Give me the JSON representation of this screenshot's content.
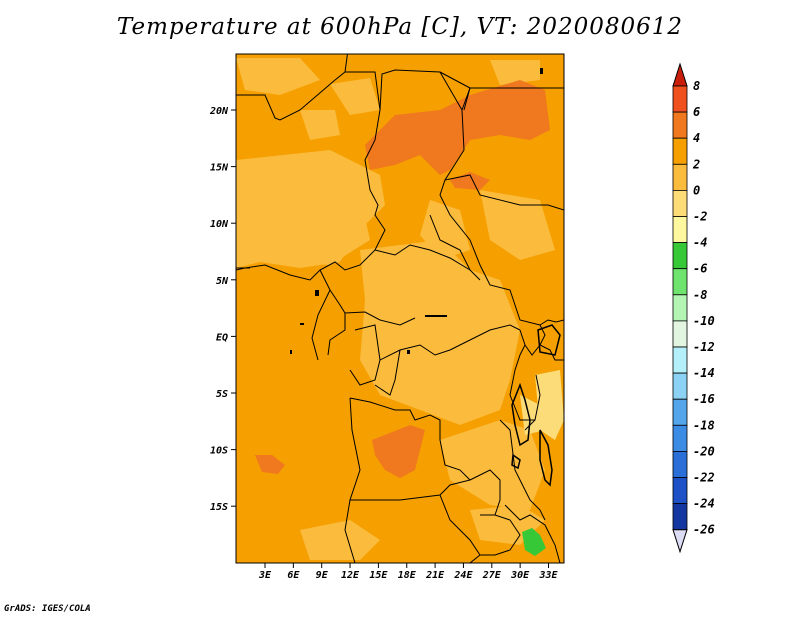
{
  "title": "Temperature at 600hPa [C], VT: 2020080612",
  "credit": "GrADS: IGES/COLA",
  "map": {
    "lat_labels": [
      "20N",
      "15N",
      "10N",
      "5N",
      "EQ",
      "5S",
      "10S",
      "15S"
    ],
    "lon_labels": [
      "3E",
      "6E",
      "9E",
      "12E",
      "15E",
      "18E",
      "21E",
      "24E",
      "27E",
      "30E",
      "33E"
    ],
    "colors": {
      "warm_2_4": "#f5a000",
      "warm_0_2": "#fbbb3c",
      "hot_4_6": "#f0781e",
      "mild_m2_0": "#fcdc78",
      "green": "#37c837",
      "land_border": "#000000"
    }
  },
  "colorbar": {
    "labels": [
      "8",
      "6",
      "4",
      "2",
      "0",
      "-2",
      "-4",
      "-6",
      "-8",
      "-10",
      "-12",
      "-14",
      "-16",
      "-18",
      "-20",
      "-22",
      "-24",
      "-26"
    ],
    "colors": [
      "#f01e0a",
      "#f0501e",
      "#f0781e",
      "#f5a000",
      "#fbbb3c",
      "#fcdc78",
      "#fdf7a0",
      "#37c837",
      "#6ee36e",
      "#b4f5b4",
      "#e1f5e1",
      "#b4f0fa",
      "#8cd2f5",
      "#55a5eb",
      "#3c8ce6",
      "#2a6ed7",
      "#1e50c8",
      "#1436a0",
      "#0a1e78"
    ],
    "top_arrow_color": "#c81e0a",
    "bottom_arrow_color": "#dcdcf5"
  }
}
